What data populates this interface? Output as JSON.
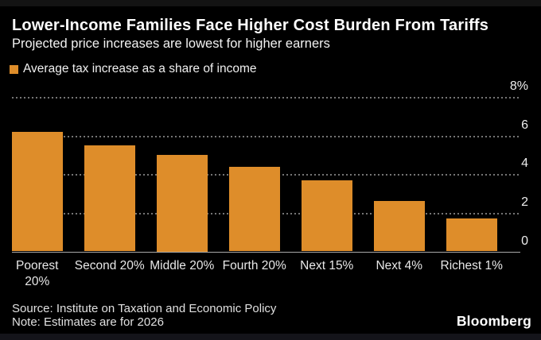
{
  "header": {
    "title": "Lower-Income Families Face Higher Cost Burden From Tariffs",
    "subtitle": "Projected price increases are lowest for higher earners"
  },
  "legend": {
    "label": "Average tax increase as a share of income",
    "swatch_color": "#DE8D2A"
  },
  "chart_data": {
    "type": "bar",
    "title": "Lower-Income Families Face Higher Cost Burden From Tariffs",
    "subtitle": "Projected price increases are lowest for higher earners",
    "series_name": "Average tax increase as a share of income",
    "categories": [
      "Poorest 20%",
      "Second 20%",
      "Middle 20%",
      "Fourth 20%",
      "Next 15%",
      "Next 4%",
      "Richest 1%"
    ],
    "category_lines": [
      [
        "Poorest",
        "20%"
      ],
      [
        "Second 20%"
      ],
      [
        "Middle 20%"
      ],
      [
        "Fourth 20%"
      ],
      [
        "Next 15%"
      ],
      [
        "Next 4%"
      ],
      [
        "Richest 1%"
      ]
    ],
    "values": [
      6.2,
      5.5,
      5.0,
      4.4,
      3.7,
      2.6,
      1.7
    ],
    "unit": "percent of income",
    "ylim": [
      0,
      8
    ],
    "ytick_values": [
      0,
      2,
      4,
      6,
      8
    ],
    "ytick_labels": [
      "0",
      "2",
      "4",
      "6",
      "8%"
    ],
    "grid": "horizontal-dotted",
    "legend_position": "top-left",
    "bar_color": "#DE8D2A",
    "background_color": "#000000"
  },
  "footer": {
    "source": "Source: Institute on Taxation and Economic Policy",
    "note": "Note: Estimates are for 2026",
    "logo": "Bloomberg"
  }
}
